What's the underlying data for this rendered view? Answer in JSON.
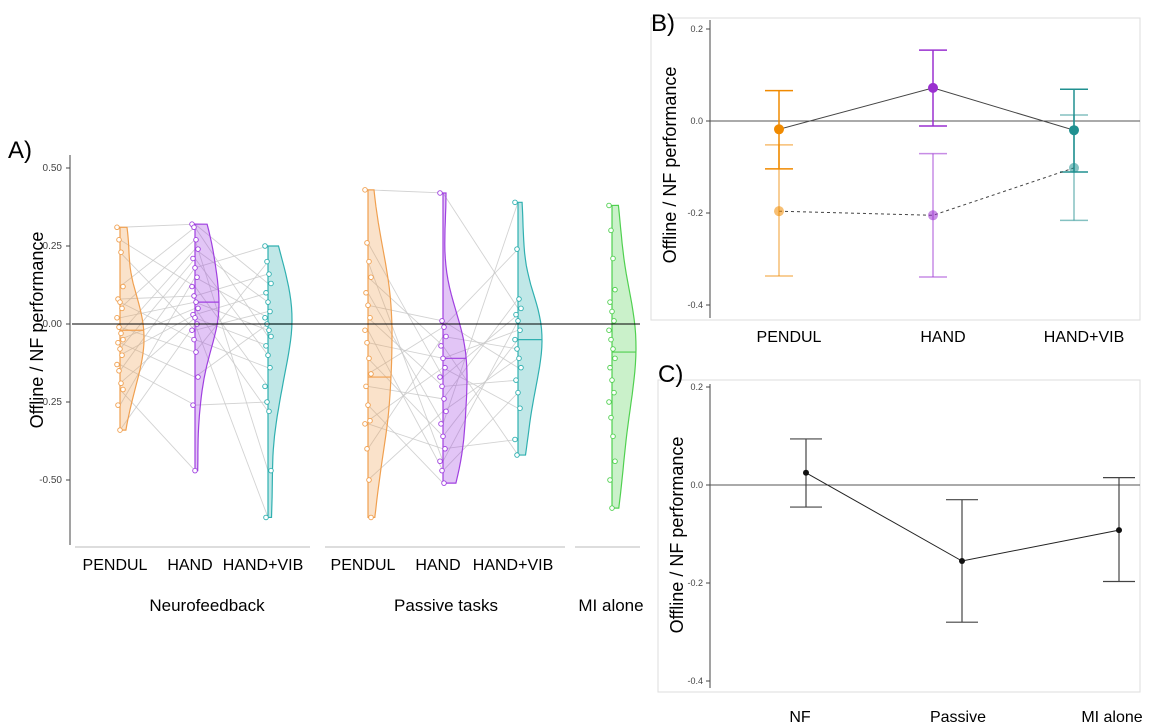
{
  "chart_data": [
    {
      "panel_label": "A)",
      "type": "violin",
      "ylabel": "Offline / NF performance",
      "ylim": [
        -0.65,
        0.5
      ],
      "yticks": [
        "0.50",
        "0.25",
        "0.00",
        "-0.25",
        "-0.50"
      ],
      "ytick_values": [
        0.5,
        0.25,
        0.0,
        -0.25,
        -0.5
      ],
      "groups": [
        {
          "label": "Neurofeedback",
          "categories": [
            {
              "label": "PENDUL",
              "color": "#f0a050",
              "median": -0.02,
              "range": [
                -0.34,
                0.31
              ],
              "points": [
                0.31,
                0.27,
                0.23,
                0.12,
                0.08,
                0.07,
                0.05,
                0.02,
                -0.01,
                -0.03,
                -0.05,
                -0.06,
                -0.08,
                -0.1,
                -0.13,
                -0.15,
                -0.19,
                -0.21,
                -0.26,
                -0.34
              ]
            },
            {
              "label": "HAND",
              "color": "#a040e0",
              "median": 0.07,
              "range": [
                -0.47,
                0.32
              ],
              "points": [
                0.32,
                0.31,
                0.27,
                0.24,
                0.21,
                0.18,
                0.15,
                0.12,
                0.09,
                0.07,
                0.05,
                0.03,
                0.02,
                0.0,
                -0.02,
                -0.05,
                -0.09,
                -0.17,
                -0.26,
                -0.47
              ]
            },
            {
              "label": "HAND+VIB",
              "color": "#30b0b0",
              "median": 0.0,
              "range": [
                -0.62,
                0.25
              ],
              "points": [
                0.25,
                0.2,
                0.16,
                0.13,
                0.1,
                0.07,
                0.04,
                0.02,
                0.0,
                -0.02,
                -0.04,
                -0.07,
                -0.1,
                -0.14,
                -0.2,
                -0.25,
                -0.28,
                -0.47,
                -0.62
              ]
            }
          ]
        },
        {
          "label": "Passive tasks",
          "categories": [
            {
              "label": "PENDUL",
              "color": "#f0a050",
              "median": -0.17,
              "range": [
                -0.62,
                0.43
              ],
              "points": [
                0.43,
                0.26,
                0.2,
                0.15,
                0.1,
                0.06,
                0.02,
                -0.02,
                -0.06,
                -0.11,
                -0.16,
                -0.2,
                -0.26,
                -0.31,
                -0.32,
                -0.4,
                -0.5,
                -0.62
              ]
            },
            {
              "label": "HAND",
              "color": "#a040e0",
              "median": -0.11,
              "range": [
                -0.51,
                0.42
              ],
              "points": [
                0.42,
                0.01,
                -0.01,
                -0.04,
                -0.07,
                -0.11,
                -0.14,
                -0.17,
                -0.2,
                -0.24,
                -0.28,
                -0.32,
                -0.36,
                -0.4,
                -0.44,
                -0.47,
                -0.51
              ]
            },
            {
              "label": "HAND+VIB",
              "color": "#30b0b0",
              "median": -0.05,
              "range": [
                -0.42,
                0.39
              ],
              "points": [
                0.39,
                0.24,
                0.08,
                0.05,
                0.03,
                0.01,
                -0.02,
                -0.05,
                -0.08,
                -0.11,
                -0.14,
                -0.18,
                -0.22,
                -0.27,
                -0.37,
                -0.42
              ]
            }
          ]
        },
        {
          "label": "MI alone",
          "categories": [
            {
              "label": "",
              "color": "#50d050",
              "median": -0.09,
              "range": [
                -0.59,
                0.38
              ],
              "points": [
                0.38,
                0.3,
                0.21,
                0.11,
                0.07,
                0.04,
                0.01,
                -0.02,
                -0.05,
                -0.08,
                -0.11,
                -0.14,
                -0.18,
                -0.22,
                -0.25,
                -0.3,
                -0.36,
                -0.44,
                -0.5,
                -0.59
              ]
            }
          ]
        }
      ]
    },
    {
      "panel_label": "B)",
      "type": "errorbar",
      "ylabel": "Offline / NF performance",
      "ylim": [
        -0.42,
        0.22
      ],
      "yticks": [
        "0.2",
        "0.0",
        "-0.2",
        "-0.4"
      ],
      "ytick_values": [
        0.2,
        0.0,
        -0.2,
        -0.4
      ],
      "categories": [
        "PENDUL",
        "HAND",
        "HAND+VIB"
      ],
      "colors": [
        "#f08a00",
        "#9a30d0",
        "#209090"
      ],
      "series": [
        {
          "style": "solid",
          "values": [
            -0.018,
            0.072,
            -0.02
          ],
          "lower": [
            -0.104,
            -0.011,
            -0.111
          ],
          "upper": [
            0.066,
            0.154,
            0.069
          ]
        },
        {
          "style": "dashed",
          "values": [
            -0.196,
            -0.205,
            -0.102
          ],
          "lower": [
            -0.337,
            -0.339,
            -0.216
          ],
          "upper": [
            -0.052,
            -0.071,
            0.013
          ]
        }
      ]
    },
    {
      "panel_label": "C)",
      "type": "errorbar",
      "ylabel": "Offline / NF performance",
      "ylim": [
        -0.42,
        0.22
      ],
      "yticks": [
        "0.2",
        "0.0",
        "-0.2",
        "-0.4"
      ],
      "ytick_values": [
        0.2,
        0.0,
        -0.2,
        -0.4
      ],
      "categories": [
        "NF",
        "Passive",
        "MI alone"
      ],
      "series": [
        {
          "values": [
            0.025,
            -0.155,
            -0.092
          ],
          "lower": [
            -0.045,
            -0.28,
            -0.197
          ],
          "upper": [
            0.094,
            -0.03,
            0.015
          ]
        }
      ]
    }
  ]
}
